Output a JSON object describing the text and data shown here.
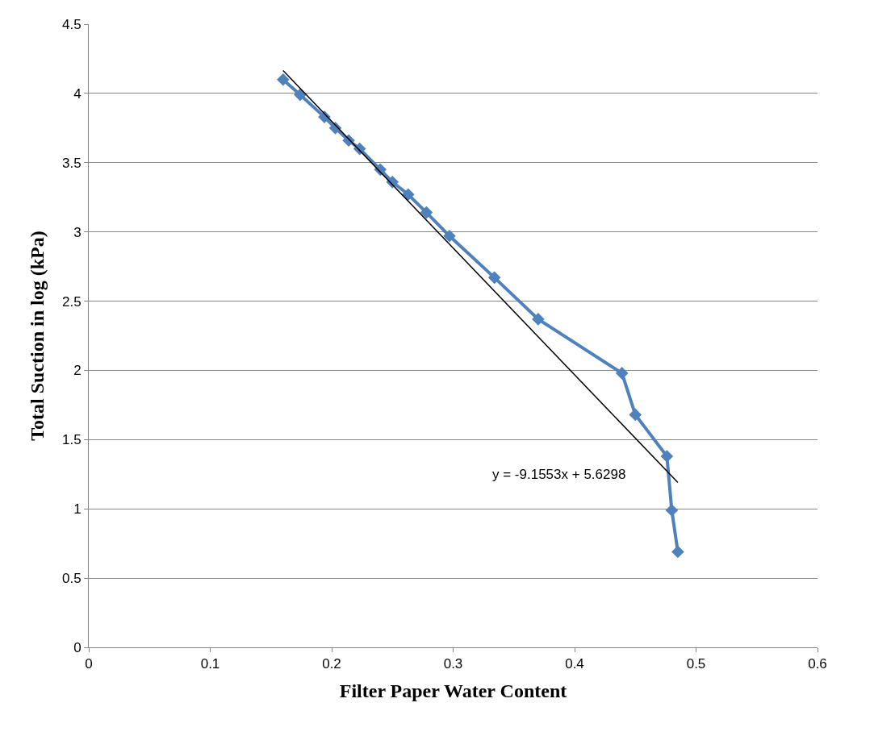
{
  "chart_data": {
    "type": "line",
    "xlabel": "Filter Paper Water Content",
    "ylabel": "Total Suction in log (kPa)",
    "xlim": [
      0,
      0.6
    ],
    "xticks": [
      0,
      0.1,
      0.2,
      0.3,
      0.4,
      0.5,
      0.6
    ],
    "ylim": [
      0,
      4.5
    ],
    "yticks": [
      0,
      0.5,
      1,
      1.5,
      2,
      2.5,
      3,
      3.5,
      4,
      4.5
    ],
    "grid": "y",
    "series": [
      {
        "color": "#4f81bd",
        "marker": "diamond",
        "x": [
          0.16,
          0.174,
          0.194,
          0.203,
          0.214,
          0.223,
          0.24,
          0.25,
          0.263,
          0.278,
          0.297,
          0.334,
          0.37,
          0.439,
          0.45,
          0.476,
          0.48,
          0.485
        ],
        "values": [
          4.1,
          3.99,
          3.83,
          3.75,
          3.66,
          3.6,
          3.45,
          3.36,
          3.27,
          3.14,
          2.97,
          2.67,
          2.37,
          1.98,
          1.68,
          1.38,
          0.99,
          0.69
        ]
      },
      {
        "color": "#000000",
        "marker": "none",
        "x": [
          0.16,
          0.485
        ],
        "values": [
          4.165,
          1.19
        ]
      }
    ],
    "annotations": [
      "y = -9.1553x + 5.6298"
    ]
  }
}
